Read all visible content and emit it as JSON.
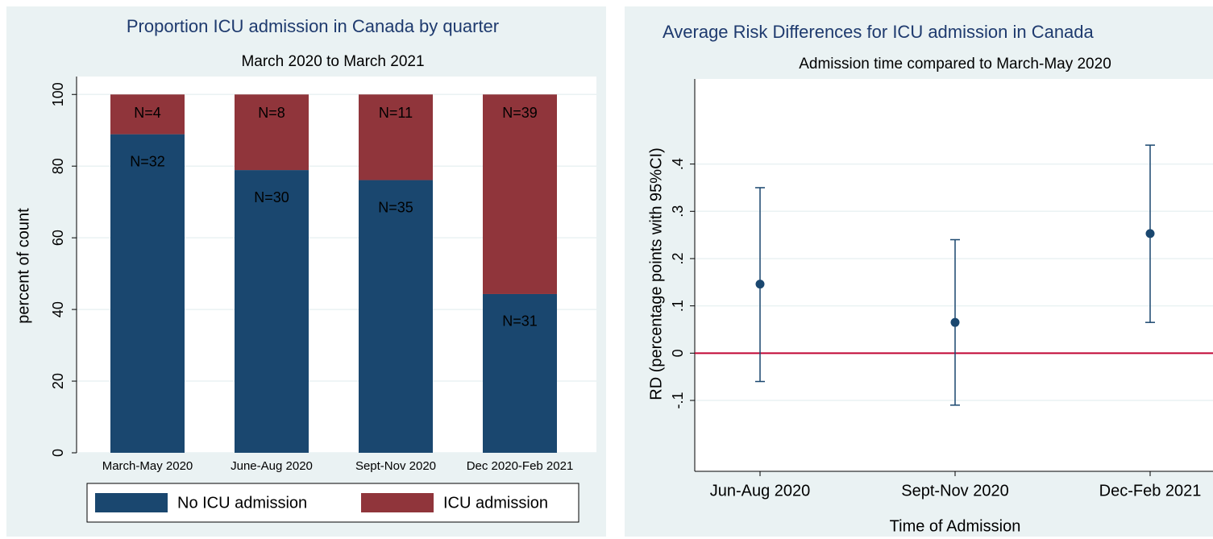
{
  "chart_data": [
    {
      "type": "bar",
      "stacked": true,
      "title": "Proportion ICU admission in Canada by quarter",
      "subtitle": "March 2020 to March 2021",
      "y_label": "percent of count",
      "categories": [
        "March-May 2020",
        "June-Aug 2020",
        "Sept-Nov 2020",
        "Dec 2020-Feb 2021"
      ],
      "series": [
        {
          "name": "No ICU admission",
          "color": "#1a476f",
          "values": [
            88.9,
            78.9,
            76.1,
            44.3
          ],
          "labels": [
            "N=32",
            "N=30",
            "N=35",
            "N=31"
          ]
        },
        {
          "name": "ICU admission",
          "color": "#90353b",
          "values": [
            11.1,
            21.1,
            23.9,
            55.7
          ],
          "labels": [
            "N=4",
            "N=8",
            "N=11",
            "N=39"
          ]
        }
      ],
      "ylim": [
        0,
        105
      ],
      "yticks": [
        0,
        20,
        40,
        60,
        80,
        100
      ],
      "grid": true,
      "legend": "bottom"
    },
    {
      "type": "scatter",
      "title": "Average Risk Differences for ICU admission in Canada",
      "subtitle": "Admission time compared to March-May 2020",
      "x_label": "Time of Admission",
      "y_label": "RD (percentage points with 95%CI)",
      "categories": [
        "Jun-Aug 2020",
        "Sept-Nov 2020",
        "Dec-Feb 2021"
      ],
      "color": "#1a476f",
      "values": [
        0.146,
        0.065,
        0.253
      ],
      "lower": [
        -0.06,
        -0.11,
        0.065
      ],
      "upper": [
        0.35,
        0.24,
        0.44
      ],
      "reference_line": 0,
      "reference_color": "#c10534",
      "ylim": [
        -0.25,
        0.58
      ],
      "yticks": [
        {
          "value": -0.1,
          "label": "-.1"
        },
        0,
        {
          "value": 0.1,
          "label": ".1"
        },
        {
          "value": 0.2,
          "label": ".2"
        },
        {
          "value": 0.3,
          "label": ".3"
        },
        {
          "value": 0.4,
          "label": ".4"
        }
      ],
      "grid": true
    }
  ]
}
